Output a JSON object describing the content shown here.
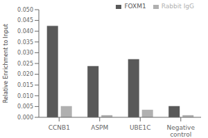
{
  "chart_data": {
    "type": "bar",
    "categories": [
      "CCNB1",
      "ASPM",
      "UBE1C",
      "Negative\ncontrol"
    ],
    "series": [
      {
        "name": "FOXM1",
        "color": "#595959",
        "values": [
          0.0425,
          0.0238,
          0.027,
          0.0052
        ]
      },
      {
        "name": "Rabbit IgG",
        "color": "#b0b0b0",
        "values": [
          0.0052,
          0.001,
          0.0035,
          0.001
        ]
      }
    ],
    "ylabel": "Relative Enrichment to Input",
    "ylim": [
      0,
      0.05
    ],
    "yticks": [
      {
        "value": 0,
        "label": "0.000"
      },
      0.005,
      {
        "value": 0.01,
        "label": "0.010"
      },
      0.015,
      {
        "value": 0.02,
        "label": "0.020"
      },
      0.025,
      {
        "value": 0.03,
        "label": "0.030"
      },
      0.035,
      {
        "value": 0.04,
        "label": "0.040"
      },
      0.045,
      {
        "value": 0.05,
        "label": "0.050"
      }
    ],
    "legend": "upper right",
    "grid": false
  }
}
